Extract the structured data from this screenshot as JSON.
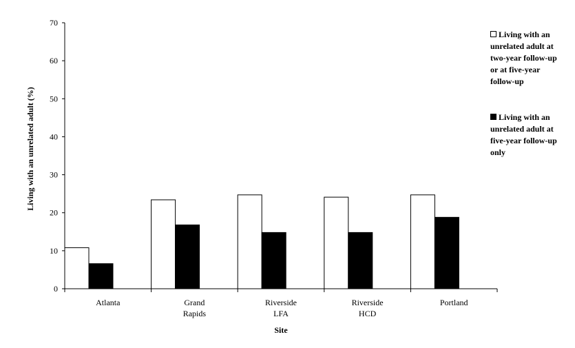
{
  "chart_data": {
    "type": "bar",
    "title": "",
    "xlabel": "Site",
    "ylabel": "Living with an unrelated adult (%)",
    "ylim": [
      0,
      70
    ],
    "yticks": [
      0,
      10,
      20,
      30,
      40,
      50,
      60,
      70
    ],
    "grid": false,
    "legend_position": "top-right",
    "categories": [
      [
        "Atlanta"
      ],
      [
        "Grand",
        "Rapids"
      ],
      [
        "Riverside",
        "LFA"
      ],
      [
        "Riverside",
        "HCD"
      ],
      [
        "Portland"
      ]
    ],
    "series": [
      {
        "name": "Living with an unrelated adult at two-year follow-up or at five-year follow-up",
        "legend_lines": [
          "Living with an",
          "unrelated adult at",
          "two-year follow-up",
          "or at five-year",
          "follow-up"
        ],
        "color": "#ffffff",
        "values": [
          10.8,
          23.4,
          24.7,
          24.1,
          24.7
        ]
      },
      {
        "name": "Living with an unrelated adult at five-year follow-up only",
        "legend_lines": [
          "Living with an",
          "unrelated adult at",
          "five-year follow-up",
          "only"
        ],
        "color": "#000000",
        "values": [
          6.6,
          16.8,
          14.8,
          14.8,
          18.8
        ]
      }
    ]
  }
}
